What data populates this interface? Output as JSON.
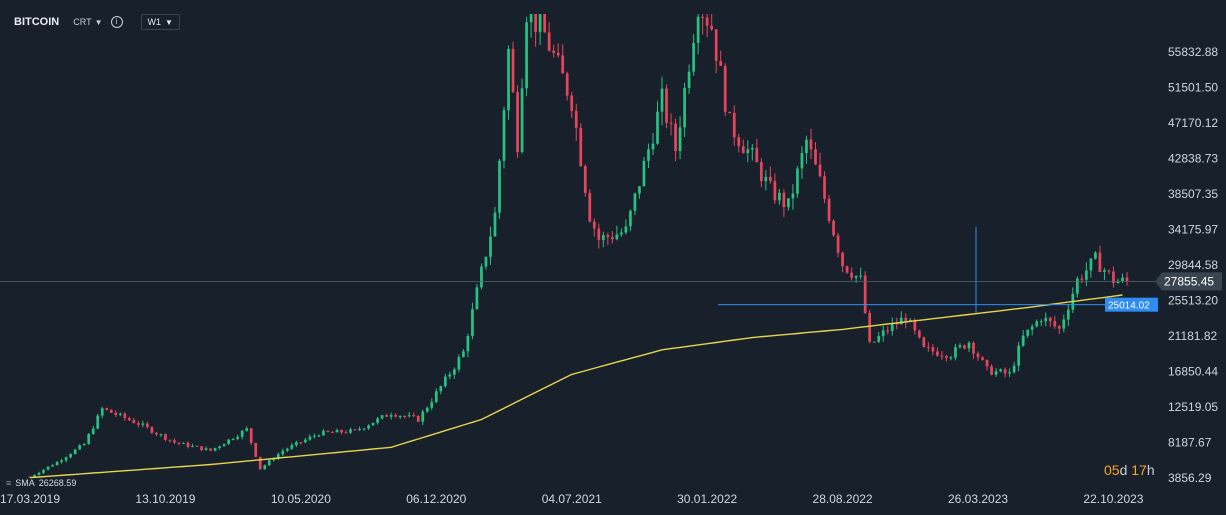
{
  "toolbar": {
    "symbol": "BITCOIN",
    "chart_type": "CRT",
    "timeframe": "W1",
    "info_glyph": "i"
  },
  "indicator": {
    "label": "SMA",
    "value": "26268.59"
  },
  "countdown": {
    "days": "05",
    "days_unit": "d",
    "hours": "17",
    "hours_unit": "h"
  },
  "colors": {
    "background": "#18212b",
    "up": "#26c281",
    "down": "#e8455c",
    "sma": "#e8d44d",
    "hline": "#2f8cf0",
    "price_tag": "#3a4552",
    "level_tag": "#2f8cf0"
  },
  "chart_data": {
    "type": "candlestick",
    "y_ticks": [
      "55832.88",
      "51501.50",
      "47170.12",
      "42838.73",
      "38507.35",
      "34175.97",
      "29844.58",
      "25513.20",
      "21181.82",
      "16850.44",
      "12519.05",
      "8187.67",
      "3856.29"
    ],
    "x_ticks": [
      "17.03.2019",
      "13.10.2019",
      "10.05.2020",
      "06.12.2020",
      "04.07.2021",
      "30.01.2022",
      "28.08.2022",
      "26.03.2023",
      "22.10.2023"
    ],
    "ylim": [
      3000,
      60500
    ],
    "current_price": "27855.45",
    "level": "25014.02",
    "level_value": 25014.02,
    "current_value": 27855.45,
    "keypoints": [
      [
        0,
        4000
      ],
      [
        6,
        5800
      ],
      [
        12,
        8000
      ],
      [
        16,
        12300
      ],
      [
        24,
        10500
      ],
      [
        32,
        8200
      ],
      [
        40,
        7200
      ],
      [
        48,
        9800
      ],
      [
        51,
        5000
      ],
      [
        56,
        7200
      ],
      [
        64,
        9300
      ],
      [
        72,
        9600
      ],
      [
        80,
        11800
      ],
      [
        86,
        11000
      ],
      [
        92,
        15800
      ],
      [
        96,
        19200
      ],
      [
        100,
        29000
      ],
      [
        103,
        36000
      ],
      [
        106,
        56000
      ],
      [
        108,
        45000
      ],
      [
        110,
        61000
      ],
      [
        114,
        58000
      ],
      [
        120,
        50000
      ],
      [
        124,
        36000
      ],
      [
        126,
        33000
      ],
      [
        132,
        34000
      ],
      [
        136,
        42000
      ],
      [
        140,
        50000
      ],
      [
        143,
        44000
      ],
      [
        148,
        62000
      ],
      [
        151,
        59000
      ],
      [
        155,
        47000
      ],
      [
        160,
        43000
      ],
      [
        164,
        39000
      ],
      [
        168,
        37000
      ],
      [
        172,
        45000
      ],
      [
        175,
        40000
      ],
      [
        180,
        30000
      ],
      [
        184,
        28000
      ],
      [
        186,
        20000
      ],
      [
        190,
        22000
      ],
      [
        194,
        23500
      ],
      [
        198,
        19500
      ],
      [
        204,
        19000
      ],
      [
        208,
        20500
      ],
      [
        212,
        17000
      ],
      [
        217,
        16500
      ],
      [
        220,
        21000
      ],
      [
        224,
        23500
      ],
      [
        228,
        22000
      ],
      [
        232,
        28000
      ],
      [
        236,
        30500
      ],
      [
        240,
        28000
      ],
      [
        243,
        27800
      ]
    ],
    "sma_values": [
      [
        0,
        3900
      ],
      [
        40,
        5500
      ],
      [
        80,
        7600
      ],
      [
        100,
        11000
      ],
      [
        120,
        16500
      ],
      [
        140,
        19500
      ],
      [
        160,
        21000
      ],
      [
        180,
        22000
      ],
      [
        200,
        23300
      ],
      [
        220,
        24600
      ],
      [
        243,
        26268.59
      ]
    ],
    "x_label_positions": [
      0,
      30,
      60,
      90,
      120,
      150,
      180,
      210,
      240
    ],
    "total_candles": 243
  }
}
